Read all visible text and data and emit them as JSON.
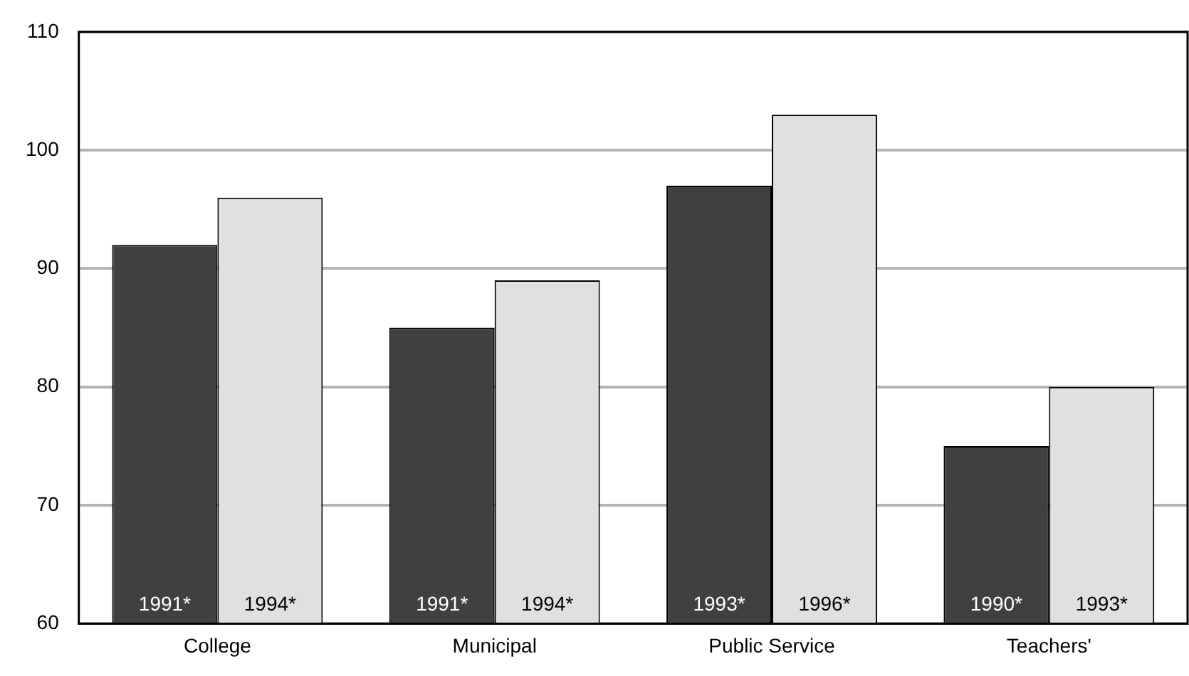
{
  "chart_data": {
    "type": "bar",
    "categories": [
      "College",
      "Municipal",
      "Public Service",
      "Teachers'"
    ],
    "series": [
      {
        "color": "#404040",
        "values": [
          92,
          85,
          97,
          75
        ]
      },
      {
        "color": "#e0e0e0",
        "values": [
          96,
          89,
          103,
          80
        ]
      }
    ],
    "annotations": [
      {
        "text": "1991*",
        "x": "College",
        "y": 60
      },
      {
        "text": "1994*",
        "x": "College",
        "y": 60
      },
      {
        "text": "1991*",
        "x": "Municipal",
        "y": 60
      },
      {
        "text": "1994*",
        "x": "Municipal",
        "y": 60
      },
      {
        "text": "1993*",
        "x": "Public Service",
        "y": 60
      },
      {
        "text": "1996*",
        "x": "Public Service",
        "y": 60
      },
      {
        "text": "1990*",
        "x": "Teachers'",
        "y": 60
      },
      {
        "text": "1993*",
        "x": "Teachers'",
        "y": 60
      }
    ],
    "ylim": [
      60,
      110
    ],
    "yticks": [
      60,
      70,
      80,
      90,
      100,
      110
    ],
    "grid": "y",
    "legend": false
  }
}
